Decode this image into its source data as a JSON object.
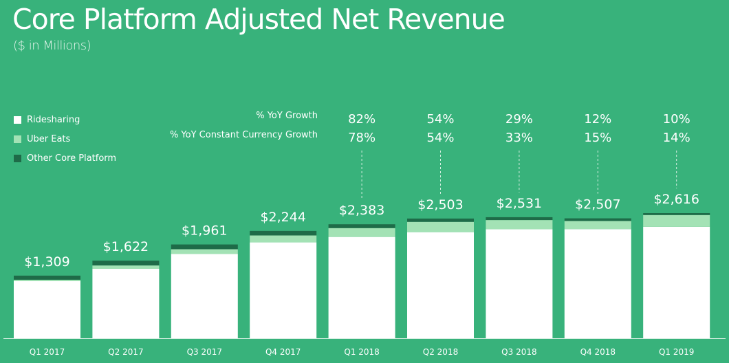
{
  "header": {
    "title": "Core Platform Adjusted Net Revenue",
    "subtitle": "($ in Millions)"
  },
  "legend": [
    {
      "label": "Ridesharing",
      "color": "#ffffff"
    },
    {
      "label": "Uber Eats",
      "color": "#a3e2b5"
    },
    {
      "label": "Other Core Platform",
      "color": "#1e6b48"
    }
  ],
  "growth_labels": {
    "yoy": "% YoY Growth",
    "yoy_cc": "% YoY Constant Currency Growth"
  },
  "colors": {
    "background": "#38b27b",
    "ridesharing": "#ffffff",
    "uber_eats": "#a3e2b5",
    "other": "#1e6b48",
    "axis": "#d7efe2"
  },
  "chart_data": {
    "type": "bar",
    "stacked": true,
    "title": "Core Platform Adjusted Net Revenue",
    "subtitle": "($ in Millions)",
    "xlabel": "",
    "ylabel": "",
    "ylim": [
      0,
      2700
    ],
    "grid": false,
    "legend_position": "top-left",
    "categories": [
      "Q1 2017",
      "Q2 2017",
      "Q3 2017",
      "Q4 2017",
      "Q1 2018",
      "Q2 2018",
      "Q3 2018",
      "Q4 2018",
      "Q1 2019"
    ],
    "totals": [
      "$1,309",
      "$1,622",
      "$1,961",
      "$2,244",
      "$2,383",
      "$2,503",
      "$2,531",
      "$2,507",
      "$2,616"
    ],
    "total_values": [
      1309,
      1622,
      1961,
      2244,
      2383,
      2503,
      2531,
      2507,
      2616
    ],
    "series": [
      {
        "name": "Ridesharing",
        "values": [
          1194,
          1452,
          1761,
          2004,
          2118,
          2218,
          2281,
          2282,
          2331
        ]
      },
      {
        "name": "Uber Eats",
        "values": [
          30,
          70,
          100,
          145,
          185,
          215,
          190,
          170,
          245
        ]
      },
      {
        "name": "Other Core Platform",
        "values": [
          85,
          100,
          100,
          95,
          80,
          70,
          60,
          55,
          40
        ]
      }
    ],
    "annotations": {
      "yoy_growth": [
        "",
        "",
        "",
        "",
        "82%",
        "54%",
        "29%",
        "12%",
        "10%"
      ],
      "yoy_cc_growth": [
        "",
        "",
        "",
        "",
        "78%",
        "54%",
        "33%",
        "15%",
        "14%"
      ]
    }
  }
}
